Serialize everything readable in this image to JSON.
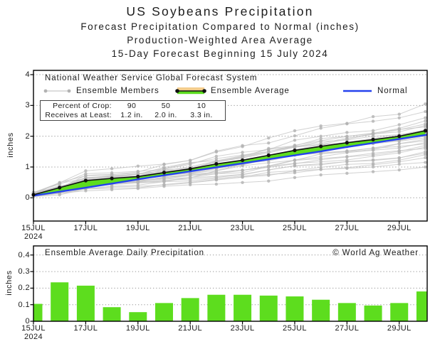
{
  "title": {
    "line1": "US Soybeans Precipitation",
    "line2": "Forecast Precipitation Compared to Normal (inches)",
    "line3": "Production-Weighted Area Average",
    "line4": "15-Day Forecast Beginning 15 July 2024"
  },
  "colors": {
    "green": "#5ddd1e",
    "orange": "#f4cd8e",
    "blue": "#2442ee",
    "member_line": "#c6c6c6",
    "member_dot": "#b3b3b3",
    "average_line": "#111111",
    "grid": "#999999",
    "frame": "#000000"
  },
  "main_chart": {
    "legend_title": "National Weather Service Global Forecast System",
    "legend": {
      "members": "Ensemble Members",
      "average": "Ensemble Average",
      "normal": "Normal"
    },
    "crop_table": {
      "row1_label": "Percent of Crop:",
      "row1": [
        "90",
        "50",
        "10"
      ],
      "row2_label": "Receives at Least:",
      "row2": [
        "1.2 in.",
        "2.0 in.",
        "3.3 in."
      ]
    },
    "ylabel": "inches"
  },
  "bottom_chart": {
    "title": "Ensemble Average Daily Precipitation",
    "credit": "© World Ag Weather",
    "ylabel": "inches"
  },
  "chart_data": [
    {
      "type": "line",
      "title": "Forecast cumulative precipitation compared to normal (inches)",
      "x_unit": "days from 15 July 2024",
      "xtick_labels": [
        "15JUL",
        "17JUL",
        "19JUL",
        "21JUL",
        "23JUL",
        "25JUL",
        "27JUL",
        "29JUL"
      ],
      "xtick_days": [
        0,
        2,
        4,
        6,
        8,
        10,
        12,
        14
      ],
      "year_label": "2024",
      "yticks": [
        0,
        1,
        2,
        3,
        4
      ],
      "ytick_labels": [
        "0",
        "1",
        "2",
        "3",
        "4"
      ],
      "ylim": [
        -0.75,
        4.15
      ],
      "xlim_days": [
        0,
        15.07
      ],
      "grid": "dotted",
      "series": [
        {
          "name": "Ensemble Average",
          "values": [
            0.1,
            0.33,
            0.56,
            0.63,
            0.69,
            0.82,
            0.94,
            1.1,
            1.22,
            1.38,
            1.54,
            1.67,
            1.79,
            1.89,
            2.0,
            2.18
          ]
        },
        {
          "name": "Normal",
          "values": [
            0.07,
            0.2,
            0.33,
            0.46,
            0.6,
            0.73,
            0.86,
            0.99,
            1.12,
            1.25,
            1.38,
            1.51,
            1.65,
            1.78,
            1.91,
            2.04
          ]
        }
      ],
      "ensemble_members": {
        "count": 26,
        "finals": [
          1.0,
          1.15,
          1.3,
          1.4,
          1.45,
          1.5,
          1.6,
          1.65,
          1.7,
          1.75,
          1.8,
          1.85,
          1.9,
          1.95,
          2.0,
          2.05,
          2.1,
          2.15,
          2.2,
          2.3,
          2.35,
          2.4,
          2.5,
          2.6,
          2.8,
          3.05
        ],
        "shape": [
          0.05,
          0.15,
          0.26,
          0.29,
          0.32,
          0.38,
          0.43,
          0.5,
          0.56,
          0.63,
          0.71,
          0.77,
          0.82,
          0.87,
          0.92,
          1.0
        ],
        "seed": 20240715
      }
    },
    {
      "type": "bar",
      "title": "Ensemble Average Daily Precipitation",
      "xtick_labels": [
        "15JUL",
        "17JUL",
        "19JUL",
        "21JUL",
        "23JUL",
        "25JUL",
        "27JUL",
        "29JUL"
      ],
      "xtick_days": [
        0,
        2,
        4,
        6,
        8,
        10,
        12,
        14
      ],
      "year_label": "2024",
      "yticks": [
        0,
        0.1,
        0.2,
        0.3,
        0.4
      ],
      "ytick_labels": [
        "0",
        "0.1",
        "0.2",
        "0.3",
        "0.4"
      ],
      "ylim": [
        0,
        0.455
      ],
      "values": [
        0.105,
        0.235,
        0.215,
        0.085,
        0.055,
        0.11,
        0.14,
        0.16,
        0.16,
        0.155,
        0.15,
        0.13,
        0.11,
        0.095,
        0.11,
        0.18
      ]
    }
  ]
}
